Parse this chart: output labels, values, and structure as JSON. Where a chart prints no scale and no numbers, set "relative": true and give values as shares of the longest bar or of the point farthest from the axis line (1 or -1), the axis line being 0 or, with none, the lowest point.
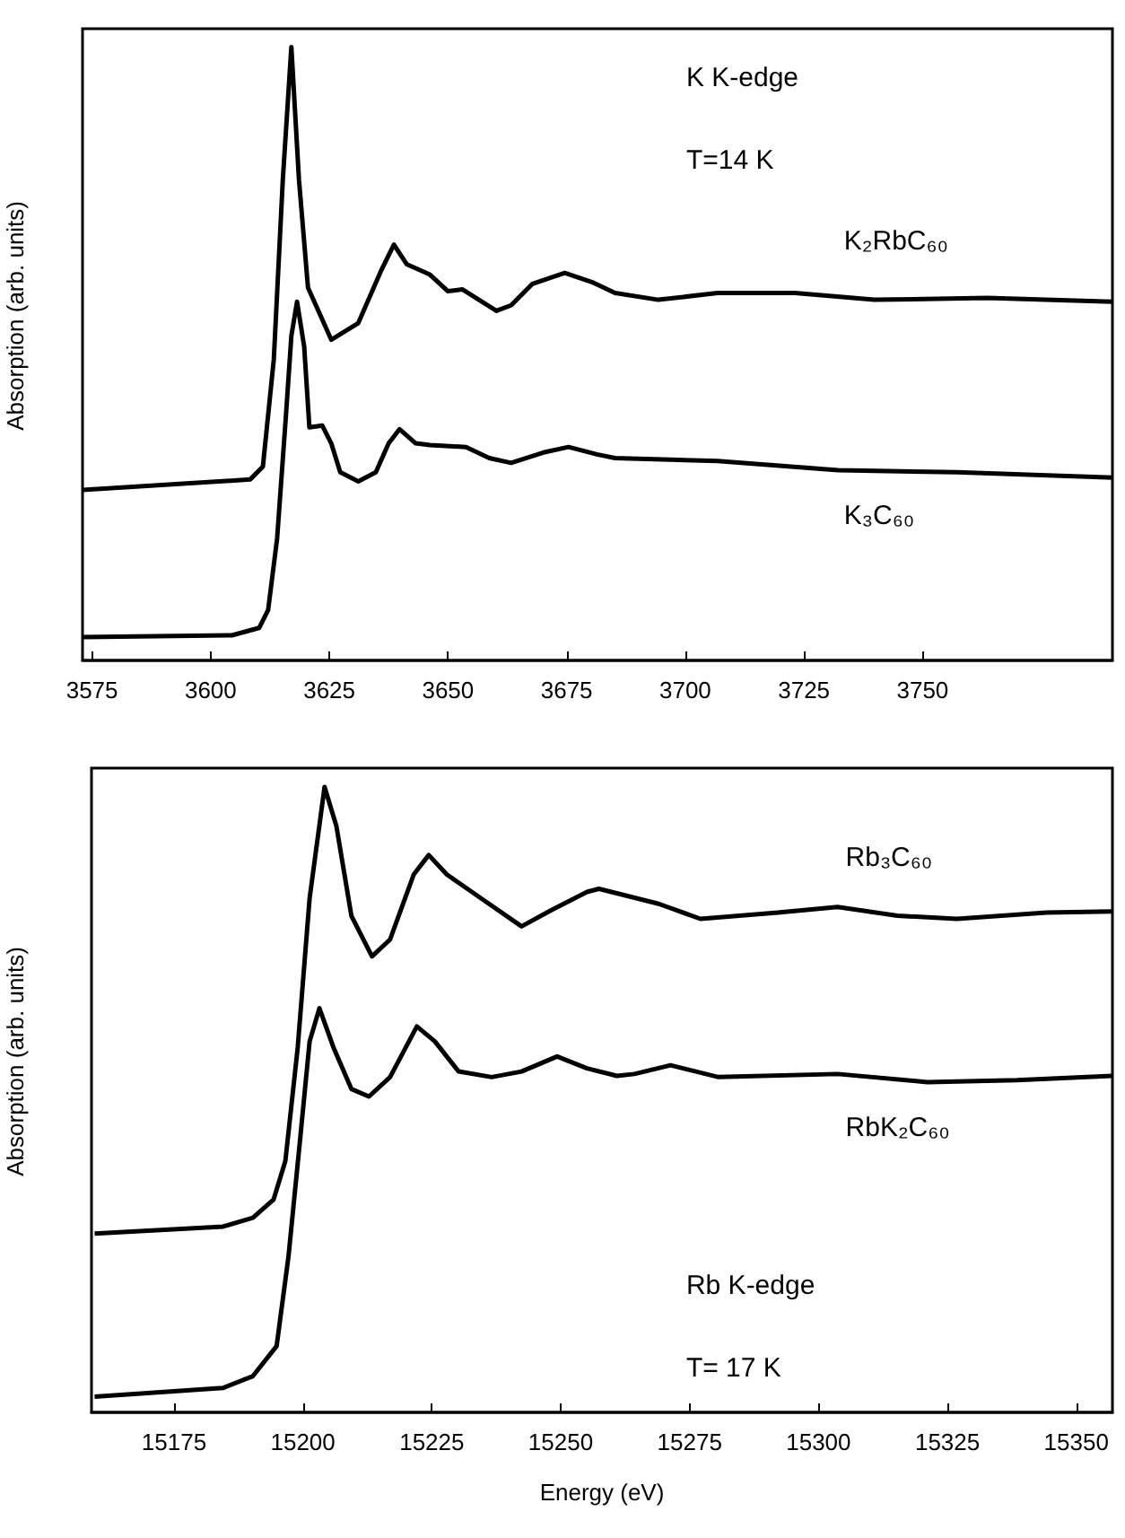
{
  "chart_data": [
    {
      "type": "line",
      "relative": true,
      "ylabel": "Absorption (arb. units)",
      "tick_labels": "x",
      "xlim": [
        3573,
        3790
      ],
      "xticks": [
        3575,
        3600,
        3625,
        3650,
        3675,
        3700,
        3725,
        3750
      ],
      "annotations": [
        "K K-edge",
        "T=14 K"
      ],
      "series": [
        {
          "name": "K₂RbC₆₀",
          "color": "#000000",
          "x": [
            3573,
            3608.3,
            3611.0,
            3613.3,
            3615.2,
            3617.0,
            3618.6,
            3620.5,
            3622.7,
            3625.4,
            3631.1,
            3636.0,
            3638.6,
            3641.3,
            3646.2,
            3650.0,
            3653.0,
            3660.2,
            3663.3,
            3667.8,
            3674.6,
            3680.3,
            3685.2,
            3694.3,
            3706.8,
            3723.1,
            3739.8,
            3763.6,
            3790
          ],
          "values": [
            0.278,
            0.295,
            0.316,
            0.491,
            0.784,
            1.0,
            0.784,
            0.608,
            0.57,
            0.523,
            0.55,
            0.637,
            0.678,
            0.646,
            0.629,
            0.602,
            0.605,
            0.57,
            0.579,
            0.614,
            0.632,
            0.617,
            0.599,
            0.588,
            0.599,
            0.599,
            0.588,
            0.591,
            0.585
          ]
        },
        {
          "name": "K₃C₆₀",
          "color": "#000000",
          "x": [
            3573,
            3604.5,
            3610.2,
            3612.1,
            3614.0,
            3615.9,
            3617.0,
            3618.2,
            3619.7,
            3620.8,
            3623.5,
            3625.4,
            3627.3,
            3631.1,
            3634.8,
            3637.5,
            3639.8,
            3643.2,
            3646.2,
            3653.8,
            3658.7,
            3663.3,
            3670.1,
            3675.4,
            3681.4,
            3685.2,
            3706.8,
            3732.2,
            3757.2,
            3790
          ],
          "values": [
            0.038,
            0.041,
            0.053,
            0.082,
            0.199,
            0.404,
            0.529,
            0.585,
            0.512,
            0.38,
            0.383,
            0.354,
            0.307,
            0.292,
            0.307,
            0.354,
            0.377,
            0.354,
            0.351,
            0.348,
            0.33,
            0.322,
            0.339,
            0.348,
            0.336,
            0.33,
            0.325,
            0.31,
            0.307,
            0.298
          ]
        }
      ]
    },
    {
      "type": "line",
      "relative": true,
      "xlabel": "Energy (eV)",
      "ylabel": "Absorption (arb. units)",
      "tick_labels": "x",
      "xlim": [
        15159,
        15357
      ],
      "xticks": [
        15175,
        15200,
        15225,
        15250,
        15275,
        15300,
        15325,
        15350
      ],
      "annotations": [
        "Rb K-edge",
        "T= 17 K"
      ],
      "series": [
        {
          "name": "Rb₃C₆₀",
          "color": "#000000",
          "x": [
            15159.6,
            15184.5,
            15190.3,
            15194.3,
            15196.6,
            15199.0,
            15201.3,
            15204.2,
            15206.5,
            15209.4,
            15213.4,
            15216.9,
            15221.5,
            15224.4,
            15227.9,
            15235.4,
            15242.4,
            15248.2,
            15255.1,
            15257.4,
            15269.0,
            15277.1,
            15292.1,
            15303.7,
            15315.3,
            15326.8,
            15344.2,
            15356.9
          ],
          "values": [
            0.286,
            0.297,
            0.311,
            0.34,
            0.402,
            0.584,
            0.822,
            1.0,
            0.937,
            0.794,
            0.729,
            0.756,
            0.86,
            0.891,
            0.86,
            0.817,
            0.777,
            0.803,
            0.832,
            0.837,
            0.813,
            0.789,
            0.799,
            0.808,
            0.794,
            0.789,
            0.799,
            0.801
          ]
        },
        {
          "name": "RbK₂C₆₀",
          "color": "#000000",
          "x": [
            15159.6,
            15184.5,
            15190.3,
            15194.9,
            15197.2,
            15199.5,
            15201.3,
            15203.2,
            15205.9,
            15209.4,
            15212.8,
            15216.9,
            15222.1,
            15225.6,
            15230.2,
            15236.6,
            15242.4,
            15249.3,
            15255.1,
            15260.9,
            15264.3,
            15271.3,
            15280.6,
            15303.7,
            15321.1,
            15338.5,
            15356.9
          ],
          "values": [
            0.025,
            0.039,
            0.058,
            0.106,
            0.249,
            0.44,
            0.593,
            0.646,
            0.584,
            0.517,
            0.505,
            0.536,
            0.617,
            0.593,
            0.545,
            0.536,
            0.545,
            0.569,
            0.55,
            0.538,
            0.541,
            0.555,
            0.536,
            0.541,
            0.528,
            0.531,
            0.538
          ]
        }
      ]
    }
  ]
}
